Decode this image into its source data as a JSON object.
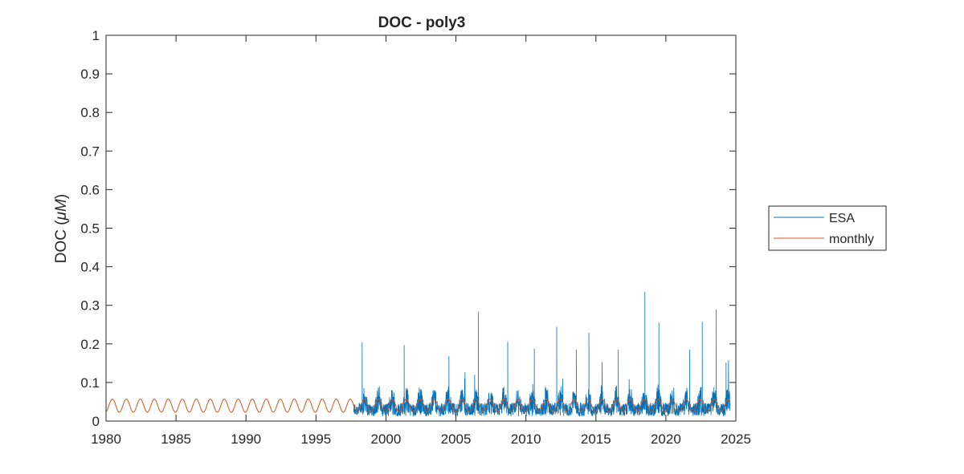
{
  "chart_data": {
    "type": "line",
    "title": "DOC - poly3",
    "ylabel_prefix": "DOC (",
    "ylabel_unit": "μM",
    "ylabel_suffix": ")",
    "xlim": [
      1980,
      2025
    ],
    "ylim": [
      0,
      1
    ],
    "xticks": [
      1980,
      1985,
      1990,
      1995,
      2000,
      2005,
      2010,
      2015,
      2020,
      2025
    ],
    "yticks": [
      0,
      0.1,
      0.2,
      0.3,
      0.4,
      0.5,
      0.6,
      0.7,
      0.8,
      0.9,
      1
    ],
    "ytick_labels": [
      "0",
      "0.1",
      "0.2",
      "0.3",
      "0.4",
      "0.5",
      "0.6",
      "0.7",
      "0.8",
      "0.9",
      "1"
    ],
    "grid": false,
    "legend_position": "outside-right",
    "series": [
      {
        "name": "ESA",
        "color": "#0072BD",
        "x_start": 1997.7,
        "x_end": 2024.6,
        "baseline": 0.03,
        "seasonal_amplitude": 0.025,
        "peaks": [
          {
            "x": 1998.3,
            "y": 0.204
          },
          {
            "x": 2001.3,
            "y": 0.197
          },
          {
            "x": 2004.5,
            "y": 0.168
          },
          {
            "x": 2006.6,
            "y": 0.283
          },
          {
            "x": 2008.7,
            "y": 0.205
          },
          {
            "x": 2010.6,
            "y": 0.188
          },
          {
            "x": 2012.2,
            "y": 0.244
          },
          {
            "x": 2013.6,
            "y": 0.185
          },
          {
            "x": 2014.5,
            "y": 0.229
          },
          {
            "x": 2016.6,
            "y": 0.185
          },
          {
            "x": 2018.5,
            "y": 0.335
          },
          {
            "x": 2019.5,
            "y": 0.255
          },
          {
            "x": 2021.7,
            "y": 0.185
          },
          {
            "x": 2022.6,
            "y": 0.257
          },
          {
            "x": 2023.6,
            "y": 0.289
          },
          {
            "x": 2024.3,
            "y": 0.152
          }
        ]
      },
      {
        "name": "monthly",
        "color": "#D95319",
        "x_start": 1980.0,
        "x_end": 2024.6,
        "mean": 0.04,
        "amplitude": 0.017,
        "period_years": 1
      }
    ]
  }
}
